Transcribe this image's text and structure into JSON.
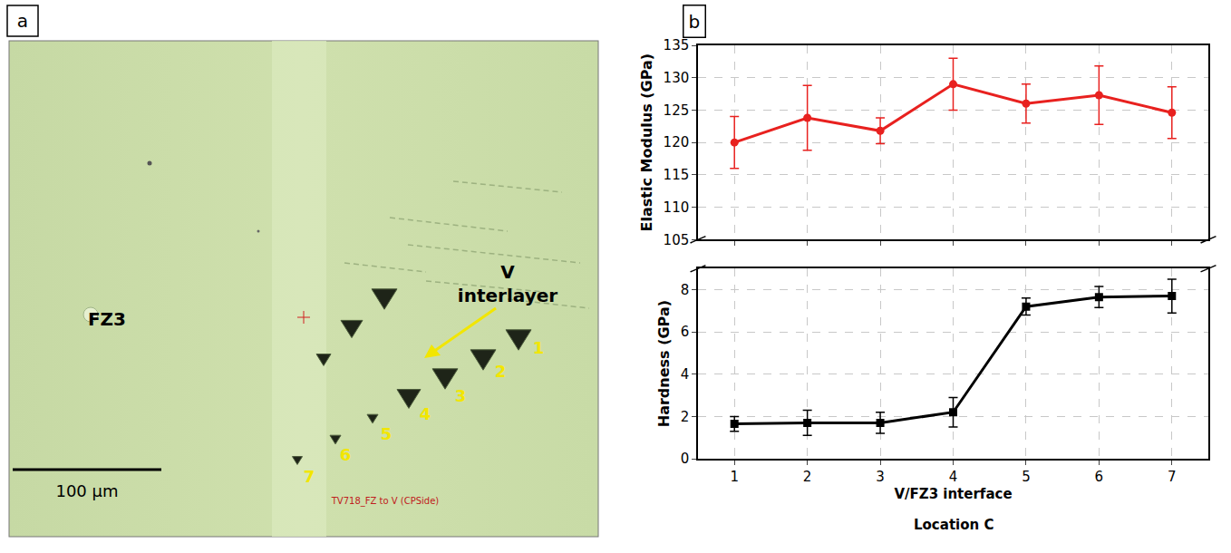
{
  "image_panel": {
    "letter": "a",
    "region_labels": [
      "FZ3",
      "V interlayer"
    ],
    "indent_labels": [
      "1",
      "2",
      "3",
      "4",
      "5",
      "6",
      "7"
    ],
    "scale_bar": "100 µm",
    "caption": "TV718_FZ to V (CPSide)"
  },
  "chart_data": [
    {
      "type": "line",
      "letter": "b",
      "x": [
        1,
        2,
        3,
        4,
        5,
        6,
        7
      ],
      "values": [
        120,
        123.8,
        121.8,
        129,
        126,
        127.3,
        124.6
      ],
      "errors": [
        4,
        5,
        2,
        4,
        3,
        4.5,
        4
      ],
      "color": "#e8211f",
      "marker": "circle",
      "ylabel": "Elastic Modulus (GPa)",
      "xlim": [
        0.5,
        7.5
      ],
      "xticks": [
        1,
        2,
        3,
        4,
        5,
        6,
        7
      ],
      "ylim": [
        105,
        135
      ],
      "yticks": [
        105,
        110,
        115,
        120,
        125,
        130,
        135
      ],
      "grid": true
    },
    {
      "type": "line",
      "x": [
        1,
        2,
        3,
        4,
        5,
        6,
        7
      ],
      "values": [
        1.65,
        1.7,
        1.7,
        2.2,
        7.2,
        7.65,
        7.7
      ],
      "errors": [
        0.35,
        0.6,
        0.5,
        0.7,
        0.4,
        0.5,
        0.8
      ],
      "color": "#000000",
      "marker": "square",
      "ylabel": "Hardness (GPa)",
      "xlabel": "V/FZ3 interface",
      "annotations": [
        "Location C"
      ],
      "xlim": [
        0.5,
        7.5
      ],
      "xticks": [
        1,
        2,
        3,
        4,
        5,
        6,
        7
      ],
      "ylim": [
        0,
        9
      ],
      "yticks": [
        0,
        2,
        4,
        6,
        8
      ],
      "grid": true
    }
  ]
}
